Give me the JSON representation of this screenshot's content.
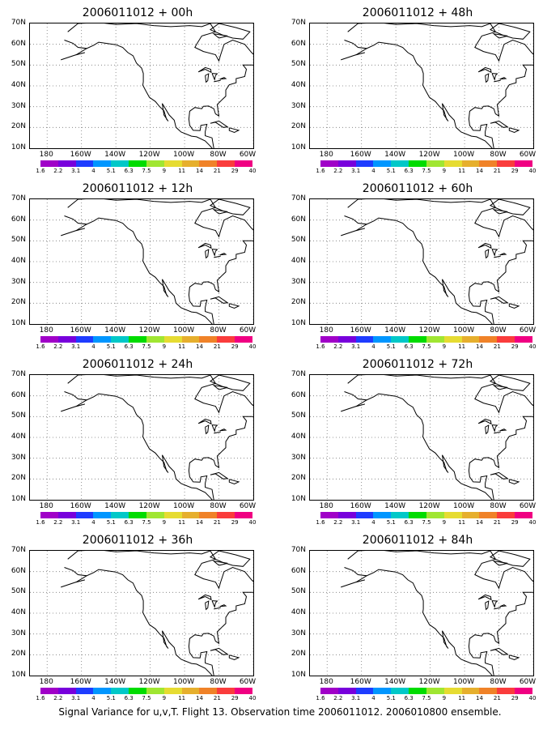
{
  "footer": "Signal Variance for u,v,T. Flight 13. Observation time 2006011012. 2006010800 ensemble.",
  "y_ticks": [
    "70N",
    "60N",
    "50N",
    "40N",
    "30N",
    "20N",
    "10N"
  ],
  "x_ticks": [
    "180",
    "160W",
    "140W",
    "120W",
    "100W",
    "80W",
    "60W"
  ],
  "colorbar": {
    "labels": [
      "1.6",
      "2.2",
      "3.1",
      "4",
      "5.1",
      "6.3",
      "7.5",
      "9",
      "11",
      "14",
      "21",
      "29",
      "40"
    ],
    "colors": [
      "#a000c8",
      "#7800dc",
      "#1e3cff",
      "#0096ff",
      "#00c8c8",
      "#00dc00",
      "#a0e632",
      "#e6dc32",
      "#e6af2d",
      "#f08228",
      "#fa3c3c",
      "#f00082"
    ]
  },
  "panels": [
    {
      "title": "2006011012 + 00h",
      "circle": false
    },
    {
      "title": "2006011012 + 48h",
      "circle": true
    },
    {
      "title": "2006011012 + 12h",
      "circle": true
    },
    {
      "title": "2006011012 + 60h",
      "circle": false
    },
    {
      "title": "2006011012 + 24h",
      "circle": true
    },
    {
      "title": "2006011012 + 72h",
      "circle": false
    },
    {
      "title": "2006011012 + 36h",
      "circle": false
    },
    {
      "title": "2006011012 + 84h",
      "circle": false
    }
  ]
}
